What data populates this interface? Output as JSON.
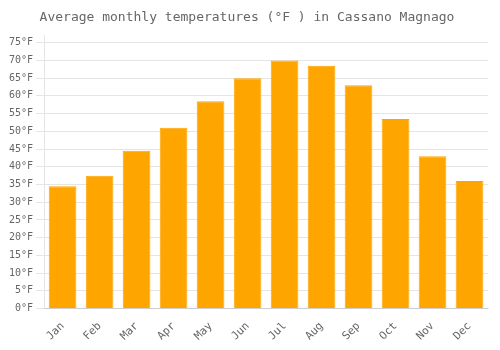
{
  "chart_data": {
    "type": "bar",
    "title": "Average monthly temperatures (°F ) in Cassano Magnago",
    "categories": [
      "Jan",
      "Feb",
      "Mar",
      "Apr",
      "May",
      "Jun",
      "Jul",
      "Aug",
      "Sep",
      "Oct",
      "Nov",
      "Dec"
    ],
    "values": [
      34.5,
      37.5,
      44.5,
      51.0,
      58.5,
      65.0,
      70.0,
      68.5,
      63.0,
      53.5,
      43.0,
      36.0
    ],
    "color": "#FFA500",
    "ylim": [
      0,
      77
    ],
    "yticks": [
      {
        "value": 0,
        "label": "0°F"
      },
      {
        "value": 5,
        "label": "5°F"
      },
      {
        "value": 10,
        "label": "10°F"
      },
      {
        "value": 15,
        "label": "15°F"
      },
      {
        "value": 20,
        "label": "20°F"
      },
      {
        "value": 25,
        "label": "25°F"
      },
      {
        "value": 30,
        "label": "30°F"
      },
      {
        "value": 35,
        "label": "35°F"
      },
      {
        "value": 40,
        "label": "40°F"
      },
      {
        "value": 45,
        "label": "45°F"
      },
      {
        "value": 50,
        "label": "50°F"
      },
      {
        "value": 55,
        "label": "55°F"
      },
      {
        "value": 60,
        "label": "60°F"
      },
      {
        "value": 65,
        "label": "65°F"
      },
      {
        "value": 70,
        "label": "70°F"
      },
      {
        "value": 75,
        "label": "75°F"
      }
    ],
    "grid": true
  }
}
